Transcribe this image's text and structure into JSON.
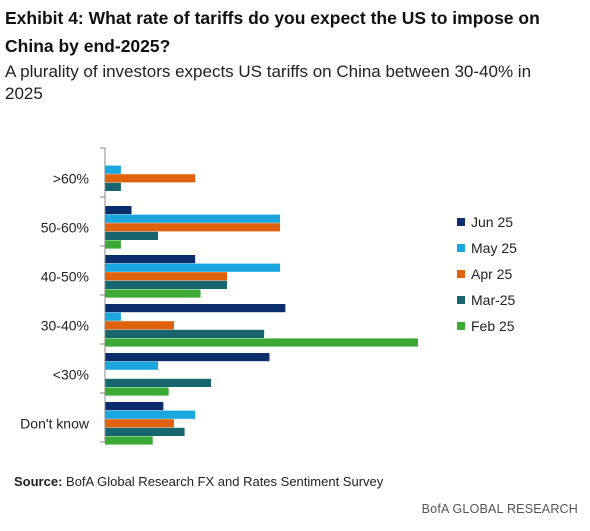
{
  "header": {
    "title": "Exhibit 4: What rate of tariffs do you expect the US to impose on China by end-2025?",
    "subtitle": "A plurality of investors expects US tariffs on China between 30-40% in 2025"
  },
  "footer": {
    "source_label": "Source:",
    "source_text": "BofA Global Research FX and Rates Sentiment Survey",
    "brand": "BofA GLOBAL RESEARCH"
  },
  "chart_data": {
    "type": "bar",
    "orientation": "horizontal",
    "categories": [
      ">60%",
      "50-60%",
      "40-50%",
      "30-40%",
      "<30%",
      "Don't know"
    ],
    "series": [
      {
        "name": "Jun 25",
        "color": "#0c2d6b",
        "values": [
          0,
          5,
          17,
          34,
          31,
          11
        ]
      },
      {
        "name": "May 25",
        "color": "#1aa7e0",
        "values": [
          3,
          33,
          33,
          3,
          10,
          17
        ]
      },
      {
        "name": "Apr 25",
        "color": "#e0620d",
        "values": [
          17,
          33,
          23,
          13,
          0,
          13
        ]
      },
      {
        "name": "Mar-25",
        "color": "#17656f",
        "values": [
          3,
          10,
          23,
          30,
          20,
          15
        ]
      },
      {
        "name": "Feb 25",
        "color": "#3aaa35",
        "values": [
          0,
          3,
          18,
          59,
          12,
          9
        ]
      }
    ],
    "xlim": [
      0,
      60
    ],
    "grid": false,
    "legend_position": "right"
  }
}
